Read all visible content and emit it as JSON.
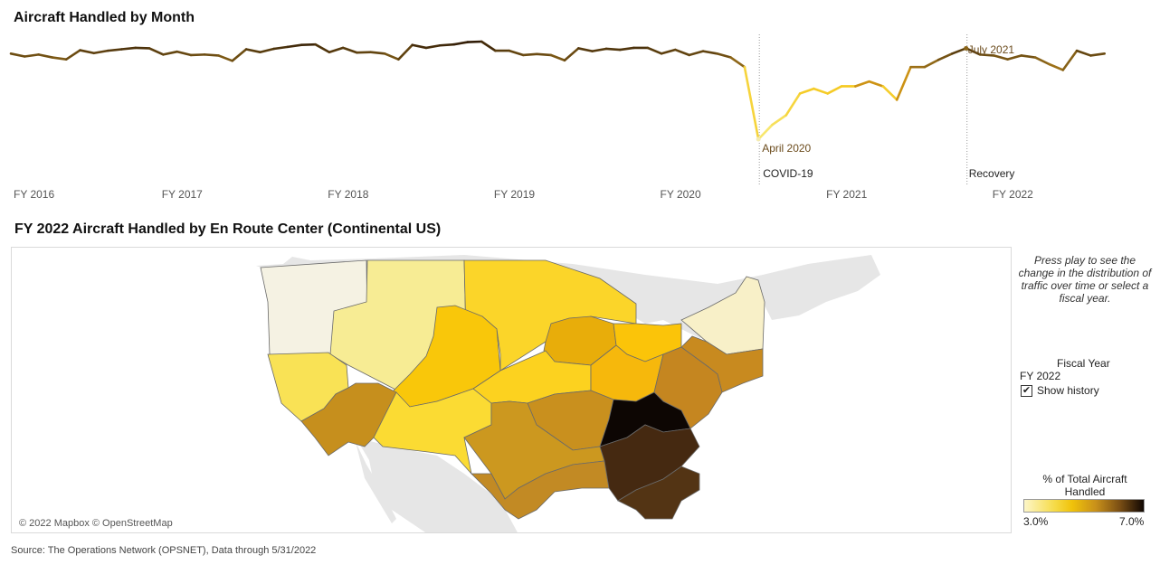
{
  "line_chart": {
    "title": "Aircraft Handled by Month",
    "fiscal_years": [
      "FY 2016",
      "FY 2017",
      "FY 2018",
      "FY 2019",
      "FY 2020",
      "FY 2021",
      "FY 2022"
    ],
    "markers": [
      {
        "label": "COVID-19",
        "point_label": "April 2020"
      },
      {
        "label": "Recovery",
        "point_label": "July 2021"
      }
    ],
    "colors": {
      "high": "#2e1a06",
      "mid": "#8a6418",
      "low": "#f8ec7a"
    }
  },
  "chart_data": {
    "type": "line",
    "title": "Aircraft Handled by Month",
    "xlabel": "",
    "ylabel": "",
    "x_ticks": [
      "FY 2016",
      "FY 2017",
      "FY 2018",
      "FY 2019",
      "FY 2020",
      "FY 2021",
      "FY 2022"
    ],
    "months_per_fy": 12,
    "series": [
      {
        "values": [
          0.88,
          0.82,
          0.86,
          0.8,
          0.76,
          0.95,
          0.89,
          0.94,
          0.97,
          1.0,
          0.99,
          0.86,
          0.92,
          0.85,
          0.86,
          0.84,
          0.73,
          0.97,
          0.91,
          0.98,
          1.02,
          1.06,
          1.07,
          0.91,
          1.0,
          0.9,
          0.91,
          0.88,
          0.76,
          1.06,
          1.0,
          1.05,
          1.07,
          1.12,
          1.13,
          0.94,
          0.94,
          0.85,
          0.87,
          0.85,
          0.74,
          0.99,
          0.93,
          0.98,
          0.96,
          1.0,
          1.0,
          0.88,
          0.96,
          0.85,
          0.93,
          0.88,
          0.8,
          0.6,
          -0.9,
          -0.6,
          -0.4,
          0.05,
          0.15,
          0.05,
          0.2,
          0.2,
          0.3,
          0.2,
          -0.08,
          0.6,
          0.6,
          0.75,
          0.88,
          0.99,
          0.86,
          0.84,
          0.76,
          0.84,
          0.8,
          0.66,
          0.54,
          0.94,
          0.84,
          0.88
        ]
      }
    ],
    "annotations": [
      "April 2020",
      "July 2021",
      "COVID-19",
      "Recovery"
    ]
  },
  "map": {
    "title": "FY 2022 Aircraft Handled by En Route Center (Continental US)",
    "credit": "© 2022 Mapbox © OpenStreetMap",
    "region_colors": {
      "seattle": "#f5f2e3",
      "salt_lake": "#f7ec94",
      "minneapolis": "#fbd529",
      "oakland": "#f9e255",
      "denver": "#f9c70a",
      "chicago": "#e8ad0a",
      "cleveland": "#fbc409",
      "boston": "#f8f0c8",
      "new_york": "#c88a1f",
      "los_angeles": "#c68f1d",
      "albuquerque": "#fbdb33",
      "kansas_city": "#fcd21f",
      "indianapolis": "#f6b80c",
      "washington": "#c58620",
      "memphis": "#c9901e",
      "atlanta": "#0d0603",
      "fort_worth": "#cc981f",
      "houston": "#c28a24",
      "jacksonville": "#452911",
      "miami": "#533414",
      "land": "#e6e6e6"
    }
  },
  "side_panel": {
    "instructions": "Press play to see the change in the distribution of traffic over time or select a fiscal year.",
    "fiscal_year_label": "Fiscal Year",
    "fiscal_year_value": "FY 2022",
    "show_history_label": "Show history",
    "show_history_checked": true
  },
  "legend": {
    "title": "% of Total Aircraft Handled",
    "min": "3.0%",
    "max": "7.0%"
  },
  "footer": {
    "source": "Source: The Operations Network (OPSNET), Data through 5/31/2022"
  }
}
